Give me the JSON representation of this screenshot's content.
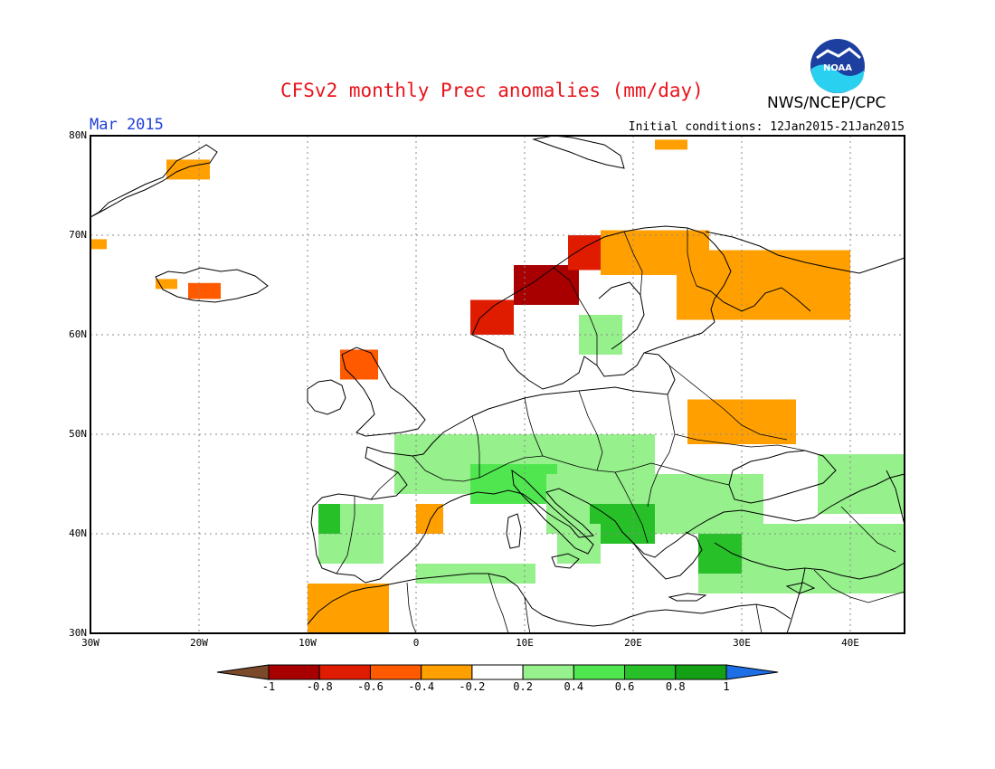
{
  "title": "CFSv2 monthly Prec anomalies (mm/day)",
  "subtitle": "Mar 2015",
  "initial_conditions": "Initial conditions: 12Jan2015-21Jan2015",
  "agency": "NWS/NCEP/CPC",
  "logo_text": "NOAA",
  "map": {
    "lat_range": [
      30,
      80
    ],
    "lon_range": [
      -30,
      45
    ],
    "lat_ticks": [
      {
        "value": 80,
        "label": "80N"
      },
      {
        "value": 70,
        "label": "70N"
      },
      {
        "value": 60,
        "label": "60N"
      },
      {
        "value": 50,
        "label": "50N"
      },
      {
        "value": 40,
        "label": "40N"
      },
      {
        "value": 30,
        "label": "30N"
      }
    ],
    "lon_ticks": [
      {
        "value": -30,
        "label": "30W"
      },
      {
        "value": -20,
        "label": "20W"
      },
      {
        "value": -10,
        "label": "10W"
      },
      {
        "value": 0,
        "label": "0"
      },
      {
        "value": 10,
        "label": "10E"
      },
      {
        "value": 20,
        "label": "20E"
      },
      {
        "value": 30,
        "label": "30E"
      },
      {
        "value": 40,
        "label": "40E"
      }
    ],
    "grid": "dotted",
    "anomaly_regions": [
      {
        "name": "Svalbard",
        "lat": [
          78.6,
          79.6
        ],
        "lon": [
          22,
          25
        ],
        "value": -0.3
      },
      {
        "name": "Greenland east",
        "lat": [
          75.6,
          77.6
        ],
        "lon": [
          -23,
          -19
        ],
        "value": -0.3
      },
      {
        "name": "Greenland south",
        "lat": [
          68.6,
          69.6
        ],
        "lon": [
          -30,
          -28.5
        ],
        "value": -0.3
      },
      {
        "name": "Iceland west",
        "lat": [
          64.6,
          65.6
        ],
        "lon": [
          -24,
          -22
        ],
        "value": -0.3
      },
      {
        "name": "Iceland south",
        "lat": [
          63.6,
          65.2
        ],
        "lon": [
          -21,
          -18
        ],
        "value": -0.5
      },
      {
        "name": "Norway coast south",
        "lat": [
          60,
          63.5
        ],
        "lon": [
          5,
          9
        ],
        "value": -0.7
      },
      {
        "name": "Norway coast mid",
        "lat": [
          63,
          67
        ],
        "lon": [
          9,
          15
        ],
        "value": -0.8
      },
      {
        "name": "Norway coast north",
        "lat": [
          66.5,
          70
        ],
        "lon": [
          14,
          22
        ],
        "value": -0.6
      },
      {
        "name": "Northern Scandinavia",
        "lat": [
          66,
          70.5
        ],
        "lon": [
          17,
          27
        ],
        "value": -0.3
      },
      {
        "name": "Kola / Karelia",
        "lat": [
          61.5,
          68.5
        ],
        "lon": [
          24,
          40
        ],
        "value": -0.3
      },
      {
        "name": "Scotland",
        "lat": [
          55.5,
          58.5
        ],
        "lon": [
          -7,
          -3.5
        ],
        "value": -0.5
      },
      {
        "name": "Ukraine",
        "lat": [
          49,
          53.5
        ],
        "lon": [
          25,
          35
        ],
        "value": -0.3
      },
      {
        "name": "NE Spain",
        "lat": [
          40,
          43
        ],
        "lon": [
          0,
          2.5
        ],
        "value": -0.3
      },
      {
        "name": "Morocco",
        "lat": [
          30,
          35
        ],
        "lon": [
          -10,
          -2.5
        ],
        "value": -0.3
      },
      {
        "name": "Central Europe",
        "lat": [
          44,
          50
        ],
        "lon": [
          -2,
          22
        ],
        "value": 0.3
      },
      {
        "name": "Alps / North Italy",
        "lat": [
          43,
          47
        ],
        "lon": [
          5,
          13
        ],
        "value": 0.6
      },
      {
        "name": "Balkans",
        "lat": [
          40,
          46
        ],
        "lon": [
          12,
          32
        ],
        "value": 0.4
      },
      {
        "name": "Adriatic coast",
        "lat": [
          39,
          43
        ],
        "lon": [
          16,
          22
        ],
        "value": 0.7
      },
      {
        "name": "Iberia west",
        "lat": [
          37,
          43
        ],
        "lon": [
          -9,
          -3
        ],
        "value": 0.4
      },
      {
        "name": "Galicia",
        "lat": [
          40,
          43
        ],
        "lon": [
          -9,
          -7
        ],
        "value": 0.7
      },
      {
        "name": "Southern Italy",
        "lat": [
          37,
          41
        ],
        "lon": [
          13,
          17
        ],
        "value": 0.4
      },
      {
        "name": "North Africa coast",
        "lat": [
          35,
          37
        ],
        "lon": [
          0,
          11
        ],
        "value": 0.3
      },
      {
        "name": "Turkey",
        "lat": [
          34,
          41
        ],
        "lon": [
          26,
          45
        ],
        "value": 0.4
      },
      {
        "name": "Western Turkey",
        "lat": [
          36,
          40
        ],
        "lon": [
          26,
          30
        ],
        "value": 0.7
      },
      {
        "name": "Caucasus",
        "lat": [
          42,
          48
        ],
        "lon": [
          37,
          45
        ],
        "value": 0.3
      },
      {
        "name": "Southern Finland",
        "lat": [
          58,
          62
        ],
        "lon": [
          15,
          19
        ],
        "value": 0.3
      }
    ]
  },
  "colorbar": {
    "levels": [
      "-1",
      "-0.8",
      "-0.6",
      "-0.4",
      "-0.2",
      "0.2",
      "0.4",
      "0.6",
      "0.8",
      "1"
    ],
    "colors": [
      "#a80000",
      "#e01c00",
      "#ff5a00",
      "#ffa000",
      "#ffffff",
      "#96f08c",
      "#50e650",
      "#28c028",
      "#14a014"
    ],
    "low_color": "#7a4a2a",
    "high_color": "#1e6ee6"
  }
}
